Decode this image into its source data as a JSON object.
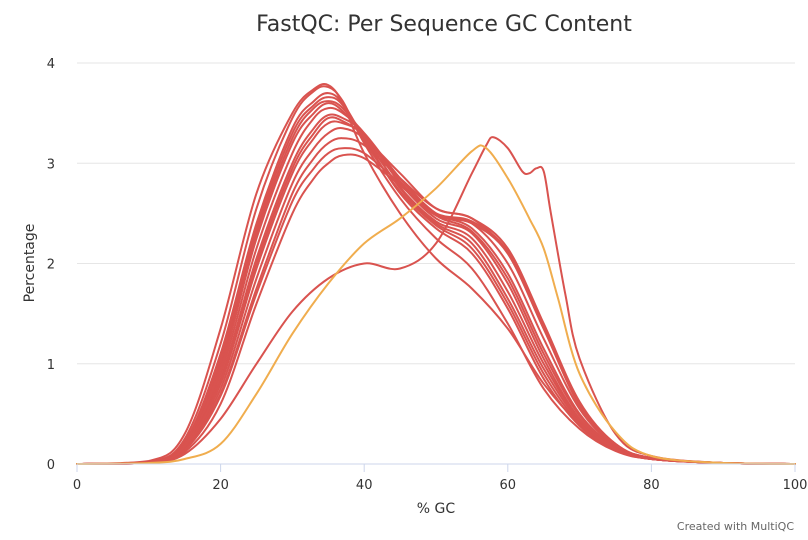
{
  "chart_data": {
    "type": "line",
    "title": "FastQC: Per Sequence GC Content",
    "xlabel": "% GC",
    "ylabel": "Percentage",
    "xlim": [
      0,
      100
    ],
    "ylim": [
      0,
      4
    ],
    "x_ticks": [
      "0",
      "20",
      "40",
      "60",
      "80",
      "100"
    ],
    "y_ticks": [
      "0",
      "1",
      "2",
      "3",
      "4"
    ],
    "grid": true,
    "legend": "none",
    "credit": "Created with MultiQC",
    "colors": {
      "fail": "#d9534f",
      "warn": "#f0ad4e",
      "gridline": "#e6e6e6",
      "axis": "#ccd6eb"
    },
    "series": [
      {
        "status": "fail",
        "x": [
          0,
          10,
          15,
          20,
          25,
          30,
          33,
          35,
          37,
          40,
          45,
          50,
          55,
          60,
          65,
          70,
          75,
          80,
          90,
          100
        ],
        "y": [
          0,
          0.02,
          0.25,
          1.2,
          2.55,
          3.45,
          3.72,
          3.76,
          3.62,
          3.2,
          2.65,
          2.25,
          1.95,
          1.4,
          0.75,
          0.35,
          0.13,
          0.05,
          0.01,
          0
        ]
      },
      {
        "status": "fail",
        "x": [
          0,
          10,
          15,
          20,
          25,
          30,
          33,
          35,
          37,
          40,
          45,
          50,
          55,
          60,
          65,
          70,
          75,
          80,
          90,
          100
        ],
        "y": [
          0,
          0.02,
          0.22,
          1.1,
          2.4,
          3.35,
          3.62,
          3.7,
          3.6,
          3.25,
          2.7,
          2.35,
          2.1,
          1.55,
          0.85,
          0.38,
          0.14,
          0.05,
          0.01,
          0
        ]
      },
      {
        "status": "fail",
        "x": [
          0,
          10,
          15,
          20,
          25,
          30,
          33,
          35,
          37,
          40,
          45,
          50,
          55,
          60,
          65,
          70,
          75,
          80,
          90,
          100
        ],
        "y": [
          0,
          0.02,
          0.2,
          1.0,
          2.3,
          3.25,
          3.55,
          3.62,
          3.55,
          3.28,
          2.75,
          2.4,
          2.2,
          1.65,
          0.95,
          0.42,
          0.15,
          0.05,
          0.01,
          0
        ]
      },
      {
        "status": "fail",
        "x": [
          0,
          10,
          15,
          20,
          25,
          30,
          33,
          35,
          37,
          40,
          45,
          50,
          55,
          60,
          65,
          70,
          75,
          80,
          90,
          100
        ],
        "y": [
          0,
          0.01,
          0.18,
          0.9,
          2.15,
          3.1,
          3.45,
          3.55,
          3.5,
          3.3,
          2.8,
          2.45,
          2.3,
          1.8,
          1.05,
          0.45,
          0.16,
          0.05,
          0.01,
          0
        ]
      },
      {
        "status": "fail",
        "x": [
          0,
          10,
          15,
          20,
          25,
          30,
          33,
          35,
          37,
          40,
          45,
          50,
          55,
          60,
          65,
          70,
          75,
          80,
          90,
          100
        ],
        "y": [
          0,
          0.01,
          0.17,
          0.85,
          2.05,
          3.0,
          3.35,
          3.48,
          3.45,
          3.3,
          2.85,
          2.5,
          2.35,
          1.9,
          1.15,
          0.5,
          0.17,
          0.06,
          0.01,
          0
        ]
      },
      {
        "status": "fail",
        "x": [
          0,
          10,
          15,
          20,
          25,
          30,
          33,
          35,
          37,
          40,
          45,
          50,
          55,
          60,
          65,
          70,
          75,
          80,
          90,
          100
        ],
        "y": [
          0,
          0.01,
          0.16,
          0.8,
          1.95,
          2.9,
          3.25,
          3.4,
          3.4,
          3.28,
          2.85,
          2.5,
          2.4,
          2.0,
          1.25,
          0.55,
          0.18,
          0.06,
          0.01,
          0
        ]
      },
      {
        "status": "fail",
        "x": [
          0,
          10,
          15,
          20,
          25,
          30,
          33,
          35,
          37,
          40,
          45,
          50,
          55,
          60,
          65,
          70,
          75,
          80,
          90,
          100
        ],
        "y": [
          0,
          0.01,
          0.15,
          0.75,
          1.85,
          2.8,
          3.15,
          3.3,
          3.35,
          3.25,
          2.9,
          2.55,
          2.45,
          2.1,
          1.35,
          0.6,
          0.2,
          0.06,
          0.01,
          0
        ]
      },
      {
        "status": "fail",
        "x": [
          0,
          10,
          15,
          20,
          25,
          30,
          33,
          35,
          37,
          40,
          45,
          50,
          55,
          60,
          65,
          70,
          75,
          80,
          90,
          100
        ],
        "y": [
          0,
          0.01,
          0.14,
          0.7,
          1.75,
          2.7,
          3.05,
          3.2,
          3.25,
          3.18,
          2.85,
          2.55,
          2.45,
          2.15,
          1.4,
          0.62,
          0.2,
          0.06,
          0.01,
          0
        ]
      },
      {
        "status": "fail",
        "x": [
          0,
          10,
          15,
          20,
          25,
          30,
          33,
          35,
          37,
          40,
          45,
          50,
          55,
          60,
          65,
          70,
          75,
          80,
          90,
          100
        ],
        "y": [
          0,
          0.01,
          0.14,
          0.68,
          1.7,
          2.62,
          2.95,
          3.1,
          3.15,
          3.1,
          2.8,
          2.5,
          2.42,
          2.12,
          1.38,
          0.6,
          0.2,
          0.06,
          0.01,
          0
        ]
      },
      {
        "status": "fail",
        "x": [
          0,
          10,
          15,
          20,
          25,
          30,
          33,
          35,
          37,
          40,
          45,
          50,
          55,
          60,
          65,
          70,
          75,
          80,
          90,
          100
        ],
        "y": [
          0,
          0.01,
          0.12,
          0.6,
          1.6,
          2.5,
          2.85,
          3.0,
          3.08,
          3.05,
          2.78,
          2.48,
          2.4,
          2.1,
          1.35,
          0.58,
          0.19,
          0.06,
          0.01,
          0
        ]
      },
      {
        "status": "fail",
        "x": [
          0,
          10,
          15,
          20,
          25,
          30,
          33,
          35,
          37,
          40,
          45,
          50,
          55,
          60,
          65,
          70,
          75,
          80,
          90,
          100
        ],
        "y": [
          0,
          0.02,
          0.2,
          1.05,
          2.35,
          3.3,
          3.58,
          3.66,
          3.58,
          3.22,
          2.72,
          2.38,
          2.15,
          1.6,
          0.9,
          0.4,
          0.14,
          0.05,
          0.01,
          0
        ]
      },
      {
        "status": "fail",
        "x": [
          0,
          10,
          15,
          20,
          25,
          30,
          33,
          35,
          37,
          40,
          45,
          50,
          55,
          60,
          65,
          70,
          75,
          80,
          90,
          100
        ],
        "y": [
          0,
          0.01,
          0.17,
          0.82,
          2.0,
          2.95,
          3.3,
          3.45,
          3.42,
          3.27,
          2.82,
          2.48,
          2.32,
          1.85,
          1.1,
          0.48,
          0.16,
          0.05,
          0.01,
          0
        ]
      },
      {
        "status": "fail",
        "x": [
          0,
          10,
          15,
          20,
          25,
          30,
          33,
          35,
          37,
          40,
          45,
          50,
          55,
          60,
          65,
          70,
          75,
          80,
          90,
          100
        ],
        "y": [
          0,
          0.03,
          0.3,
          1.35,
          2.7,
          3.5,
          3.74,
          3.78,
          3.6,
          3.1,
          2.5,
          2.05,
          1.75,
          1.35,
          0.8,
          0.4,
          0.15,
          0.05,
          0.01,
          0
        ]
      },
      {
        "status": "fail",
        "x": [
          0,
          10,
          15,
          20,
          25,
          30,
          33,
          35,
          37,
          40,
          45,
          50,
          55,
          60,
          65,
          70,
          75,
          80,
          90,
          100
        ],
        "y": [
          0,
          0.02,
          0.18,
          0.95,
          2.25,
          3.2,
          3.5,
          3.6,
          3.52,
          3.26,
          2.76,
          2.42,
          2.25,
          1.72,
          1.0,
          0.44,
          0.15,
          0.05,
          0.01,
          0
        ]
      },
      {
        "status": "fail",
        "x": [
          0,
          10,
          15,
          20,
          25,
          30,
          35,
          40,
          45,
          50,
          55,
          57,
          58,
          60,
          62,
          63,
          64,
          65,
          66,
          68,
          70,
          75,
          80,
          90,
          100
        ],
        "y": [
          0,
          0.01,
          0.1,
          0.45,
          1.0,
          1.52,
          1.85,
          2.0,
          1.95,
          2.2,
          2.9,
          3.18,
          3.26,
          3.15,
          2.92,
          2.9,
          2.95,
          2.92,
          2.5,
          1.7,
          1.05,
          0.3,
          0.08,
          0.01,
          0
        ]
      },
      {
        "status": "warn",
        "x": [
          0,
          10,
          15,
          20,
          25,
          30,
          35,
          40,
          45,
          50,
          55,
          57,
          60,
          63,
          65,
          67,
          70,
          75,
          80,
          90,
          100
        ],
        "y": [
          0,
          0.01,
          0.05,
          0.2,
          0.7,
          1.3,
          1.8,
          2.2,
          2.45,
          2.75,
          3.12,
          3.15,
          2.85,
          2.45,
          2.15,
          1.65,
          0.9,
          0.32,
          0.08,
          0.01,
          0
        ]
      }
    ]
  }
}
